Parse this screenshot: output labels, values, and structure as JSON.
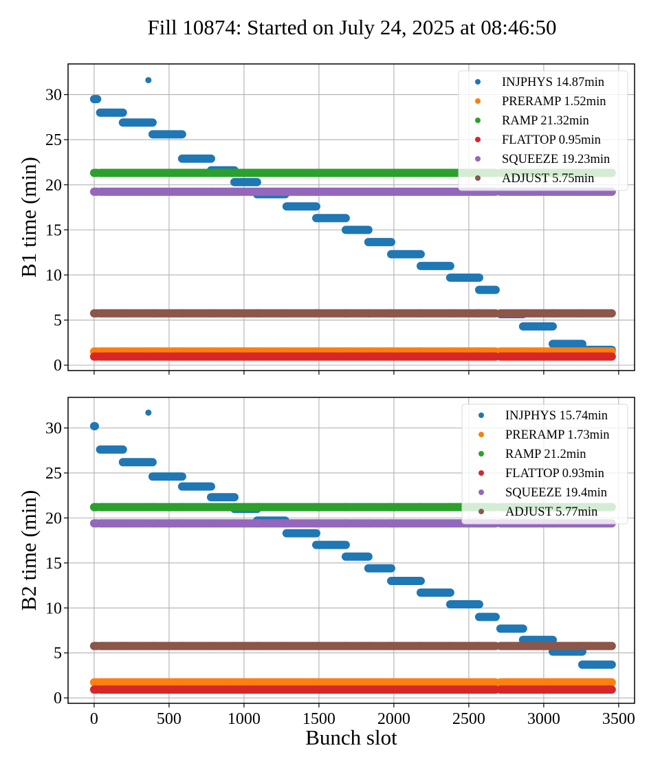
{
  "title": "Fill 10874: Started on July 24, 2025 at 08:46:50",
  "chart_data": [
    {
      "type": "scatter",
      "panel": "top",
      "title": "",
      "xlabel": "",
      "ylabel": "B1 time (min)",
      "xlim": [
        -174,
        3606
      ],
      "ylim": [
        -0.6,
        33.4
      ],
      "xticks": [
        0,
        500,
        1000,
        1500,
        2000,
        2500,
        3000,
        3500
      ],
      "xtick_labels_visible": false,
      "yticks": [
        0,
        5,
        10,
        15,
        20,
        25,
        30
      ],
      "grid": true,
      "legend_position": "top-right",
      "gap": [
        2680,
        2711
      ],
      "x_max": 3454,
      "series": [
        {
          "name": "INJPHYS",
          "legend": "INJPHYS 14.87min",
          "color": "#1f77b4",
          "segments": [
            {
              "x0": 0,
              "x1": 20,
              "y": 29.5
            },
            {
              "x0": 362,
              "x1": 362,
              "y": 31.6
            },
            {
              "x0": 40,
              "x1": 192,
              "y": 28.0
            },
            {
              "x0": 192,
              "x1": 390,
              "y": 26.9
            },
            {
              "x0": 390,
              "x1": 587,
              "y": 25.6
            },
            {
              "x0": 587,
              "x1": 780,
              "y": 22.9
            },
            {
              "x0": 780,
              "x1": 936,
              "y": 21.6
            },
            {
              "x0": 936,
              "x1": 1087,
              "y": 20.3
            },
            {
              "x0": 1087,
              "x1": 1275,
              "y": 18.95
            },
            {
              "x0": 1284,
              "x1": 1482,
              "y": 17.6
            },
            {
              "x0": 1482,
              "x1": 1679,
              "y": 16.3
            },
            {
              "x0": 1679,
              "x1": 1830,
              "y": 15.0
            },
            {
              "x0": 1830,
              "x1": 1982,
              "y": 13.65
            },
            {
              "x0": 1982,
              "x1": 2179,
              "y": 12.3
            },
            {
              "x0": 2179,
              "x1": 2376,
              "y": 11.0
            },
            {
              "x0": 2376,
              "x1": 2569,
              "y": 9.7
            },
            {
              "x0": 2569,
              "x1": 2679,
              "y": 8.35
            },
            {
              "x0": 2711,
              "x1": 2862,
              "y": 5.65
            },
            {
              "x0": 2862,
              "x1": 3060,
              "y": 4.3
            },
            {
              "x0": 3060,
              "x1": 3257,
              "y": 2.35
            },
            {
              "x0": 3257,
              "x1": 3454,
              "y": 1.7
            }
          ]
        },
        {
          "name": "PRERAMP",
          "legend": "PRERAMP 1.52min",
          "color": "#ff7f0e",
          "value": 1.52
        },
        {
          "name": "RAMP",
          "legend": "RAMP 21.32min",
          "color": "#2ca02c",
          "value": 21.32
        },
        {
          "name": "FLATTOP",
          "legend": "FLATTOP 0.95min",
          "color": "#d62728",
          "value": 0.95
        },
        {
          "name": "SQUEEZE",
          "legend": "SQUEEZE 19.23min",
          "color": "#9467bd",
          "value": 19.23
        },
        {
          "name": "ADJUST",
          "legend": "ADJUST 5.75min",
          "color": "#8c564b",
          "value": 5.75
        }
      ]
    },
    {
      "type": "scatter",
      "panel": "bottom",
      "title": "",
      "xlabel": "Bunch slot",
      "ylabel": "B2 time (min)",
      "xlim": [
        -174,
        3606
      ],
      "ylim": [
        -0.6,
        33.4
      ],
      "xticks": [
        0,
        500,
        1000,
        1500,
        2000,
        2500,
        3000,
        3500
      ],
      "xtick_labels_visible": true,
      "yticks": [
        0,
        5,
        10,
        15,
        20,
        25,
        30
      ],
      "grid": true,
      "legend_position": "top-right",
      "gap": [
        2680,
        2711
      ],
      "x_max": 3454,
      "series": [
        {
          "name": "INJPHYS",
          "legend": "INJPHYS 15.74min",
          "color": "#1f77b4",
          "segments": [
            {
              "x0": 0,
              "x1": 5,
              "y": 30.2
            },
            {
              "x0": 362,
              "x1": 362,
              "y": 31.7
            },
            {
              "x0": 40,
              "x1": 192,
              "y": 27.6
            },
            {
              "x0": 192,
              "x1": 390,
              "y": 26.2
            },
            {
              "x0": 390,
              "x1": 587,
              "y": 24.6
            },
            {
              "x0": 587,
              "x1": 780,
              "y": 23.5
            },
            {
              "x0": 780,
              "x1": 936,
              "y": 22.3
            },
            {
              "x0": 936,
              "x1": 1087,
              "y": 21.0
            },
            {
              "x0": 1087,
              "x1": 1275,
              "y": 19.7
            },
            {
              "x0": 1284,
              "x1": 1482,
              "y": 18.3
            },
            {
              "x0": 1482,
              "x1": 1679,
              "y": 17.0
            },
            {
              "x0": 1679,
              "x1": 1830,
              "y": 15.7
            },
            {
              "x0": 1830,
              "x1": 1982,
              "y": 14.4
            },
            {
              "x0": 1982,
              "x1": 2179,
              "y": 13.0
            },
            {
              "x0": 2179,
              "x1": 2376,
              "y": 11.7
            },
            {
              "x0": 2376,
              "x1": 2569,
              "y": 10.4
            },
            {
              "x0": 2569,
              "x1": 2679,
              "y": 9.0
            },
            {
              "x0": 2711,
              "x1": 2862,
              "y": 7.7
            },
            {
              "x0": 2862,
              "x1": 3060,
              "y": 6.45
            },
            {
              "x0": 3060,
              "x1": 3257,
              "y": 5.15
            },
            {
              "x0": 3257,
              "x1": 3454,
              "y": 3.7
            }
          ]
        },
        {
          "name": "PRERAMP",
          "legend": "PRERAMP 1.73min",
          "color": "#ff7f0e",
          "value": 1.73
        },
        {
          "name": "RAMP",
          "legend": "RAMP 21.2min",
          "color": "#2ca02c",
          "value": 21.2
        },
        {
          "name": "FLATTOP",
          "legend": "FLATTOP 0.93min",
          "color": "#d62728",
          "value": 0.93
        },
        {
          "name": "SQUEEZE",
          "legend": "SQUEEZE 19.4min",
          "color": "#9467bd",
          "value": 19.4
        },
        {
          "name": "ADJUST",
          "legend": "ADJUST 5.77min",
          "color": "#8c564b",
          "value": 5.77
        }
      ]
    }
  ]
}
